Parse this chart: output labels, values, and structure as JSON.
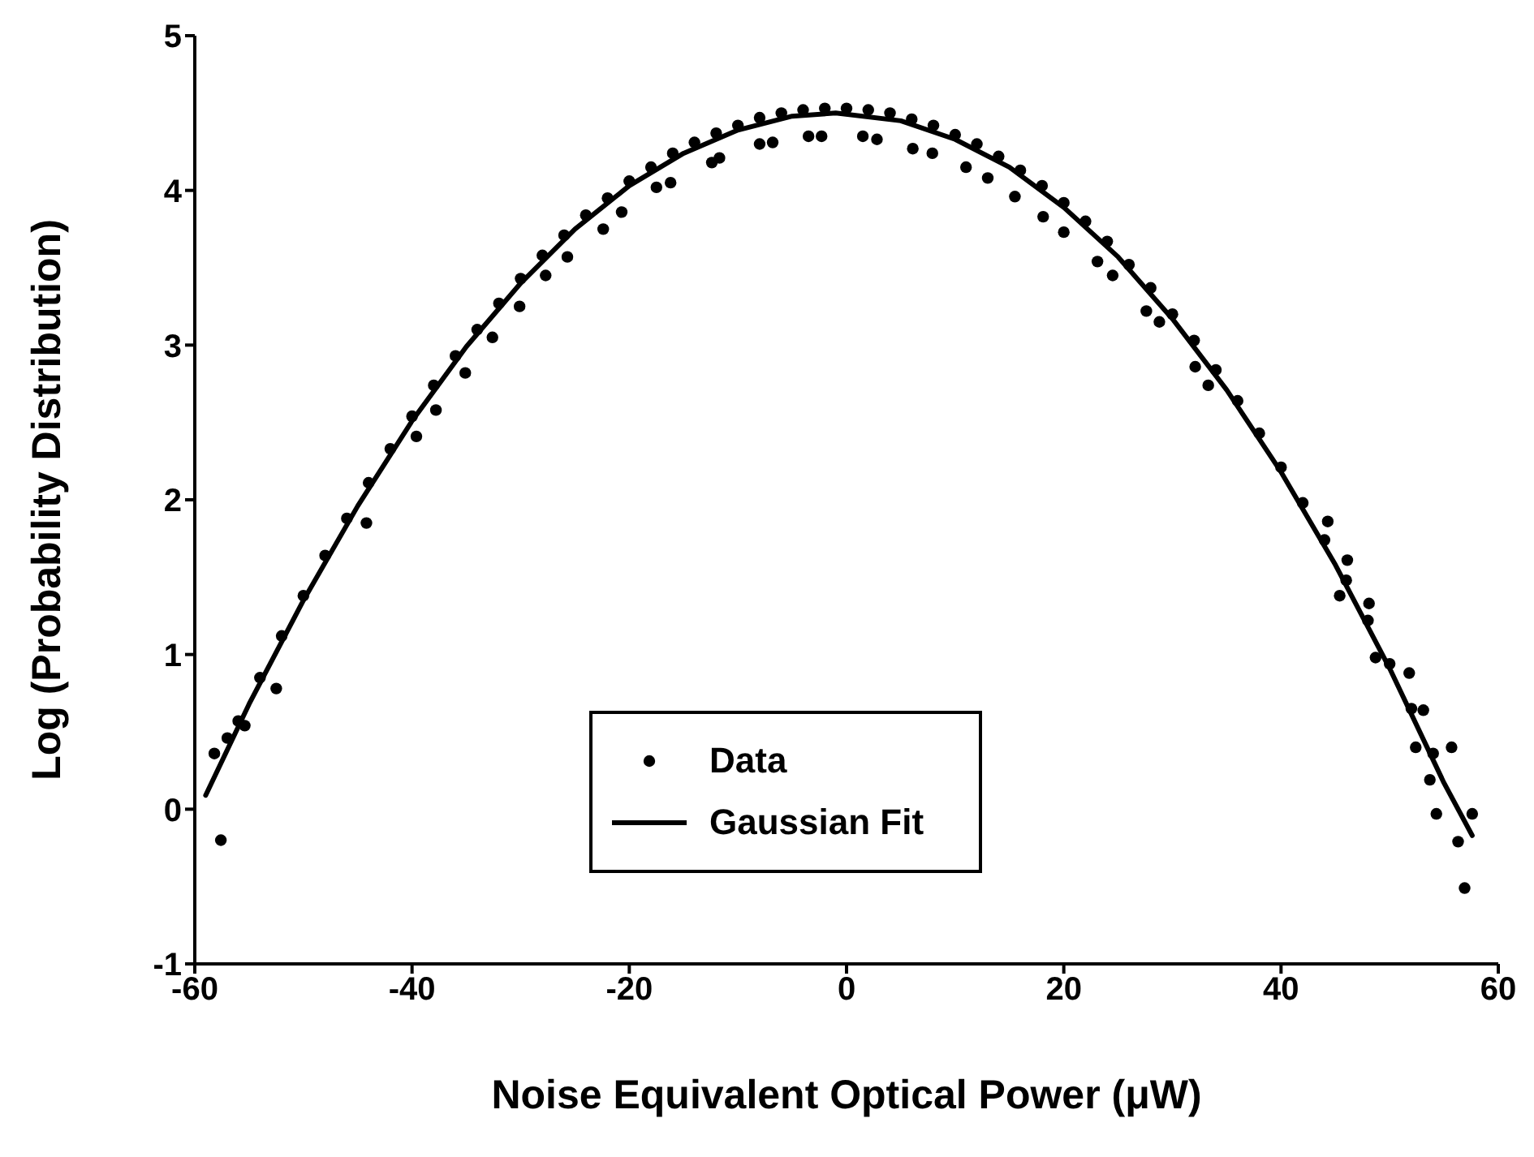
{
  "chart_data": {
    "type": "scatter",
    "xlabel": "Noise Equivalent Optical Power (μW)",
    "ylabel": "Log (Probability Distribution)",
    "xlim": [
      -60,
      60
    ],
    "ylim": [
      -1,
      5
    ],
    "xticks": [
      -60,
      -40,
      -20,
      0,
      20,
      40,
      60
    ],
    "yticks": [
      -1,
      0,
      1,
      2,
      3,
      4,
      5
    ],
    "legend": "bottom",
    "series": [
      {
        "type": "scatter",
        "name": "Data",
        "color": "#000000",
        "marker": "circle",
        "x": [
          -58.2,
          -57.6,
          -57.0,
          -56,
          -55.4,
          -54,
          -52.5,
          -52,
          -50,
          -48,
          -46,
          -44.2,
          -44,
          -42,
          -40,
          -39.6,
          -38,
          -37.8,
          -36,
          -35.1,
          -34,
          -32.6,
          -32,
          -30.1,
          -30,
          -28,
          -27.7,
          -26,
          -25.7,
          -24,
          -22.4,
          -22,
          -20.7,
          -20,
          -18,
          -17.5,
          -16.2,
          -16,
          -14,
          -12.4,
          -12,
          -11.7,
          -10,
          -8,
          -8.0,
          -6.8,
          -6,
          -4,
          -3.5,
          -2,
          -2.3,
          0,
          1.5,
          2,
          2.8,
          4,
          6,
          6.1,
          7.9,
          8,
          10,
          11.0,
          12,
          13.0,
          14,
          15.5,
          16,
          18,
          18.1,
          20,
          20.0,
          22,
          23.1,
          24,
          24.5,
          26,
          27.6,
          28,
          28.8,
          30,
          32,
          32.1,
          33.3,
          34,
          36,
          38,
          40,
          42,
          44,
          44.3,
          45.4,
          46,
          46.1,
          48,
          48.1,
          48.7,
          50,
          51.8,
          52,
          52.4,
          53.1,
          53.7,
          54,
          54.3,
          55.7,
          56.3,
          56.9,
          57.6
        ],
        "values": [
          0.36,
          -0.2,
          0.46,
          0.57,
          0.54,
          0.85,
          0.78,
          1.12,
          1.38,
          1.64,
          1.88,
          1.85,
          2.11,
          2.33,
          2.54,
          2.41,
          2.74,
          2.58,
          2.93,
          2.82,
          3.1,
          3.05,
          3.27,
          3.25,
          3.43,
          3.58,
          3.45,
          3.71,
          3.57,
          3.84,
          3.75,
          3.95,
          3.86,
          4.06,
          4.15,
          4.02,
          4.05,
          4.24,
          4.31,
          4.18,
          4.37,
          4.21,
          4.42,
          4.47,
          4.3,
          4.31,
          4.5,
          4.52,
          4.35,
          4.53,
          4.35,
          4.53,
          4.35,
          4.52,
          4.33,
          4.5,
          4.46,
          4.27,
          4.24,
          4.42,
          4.36,
          4.15,
          4.3,
          4.08,
          4.22,
          3.96,
          4.13,
          4.03,
          3.83,
          3.92,
          3.73,
          3.8,
          3.54,
          3.67,
          3.45,
          3.52,
          3.22,
          3.37,
          3.15,
          3.2,
          3.03,
          2.86,
          2.74,
          2.84,
          2.64,
          2.43,
          2.21,
          1.98,
          1.74,
          1.86,
          1.38,
          1.48,
          1.61,
          1.22,
          1.33,
          0.98,
          0.94,
          0.88,
          0.65,
          0.4,
          0.64,
          0.19,
          0.36,
          -0.03,
          0.4,
          -0.21,
          -0.51,
          -0.03
        ]
      },
      {
        "type": "line",
        "name": "Gaussian Fit",
        "color": "#000000",
        "marker": "none",
        "line_style": "solid",
        "x": [
          -59,
          -55,
          -50,
          -45,
          -40,
          -35,
          -30,
          -25,
          -20,
          -15,
          -10,
          -5,
          -1,
          5,
          10,
          15,
          20,
          25,
          30,
          35,
          40,
          45,
          50,
          55,
          57.6
        ],
        "values": [
          0.09,
          0.68,
          1.35,
          1.96,
          2.51,
          2.99,
          3.4,
          3.75,
          4.03,
          4.24,
          4.39,
          4.48,
          4.5,
          4.45,
          4.33,
          4.15,
          3.89,
          3.57,
          3.17,
          2.71,
          2.18,
          1.58,
          0.91,
          0.17,
          -0.17
        ]
      }
    ]
  }
}
